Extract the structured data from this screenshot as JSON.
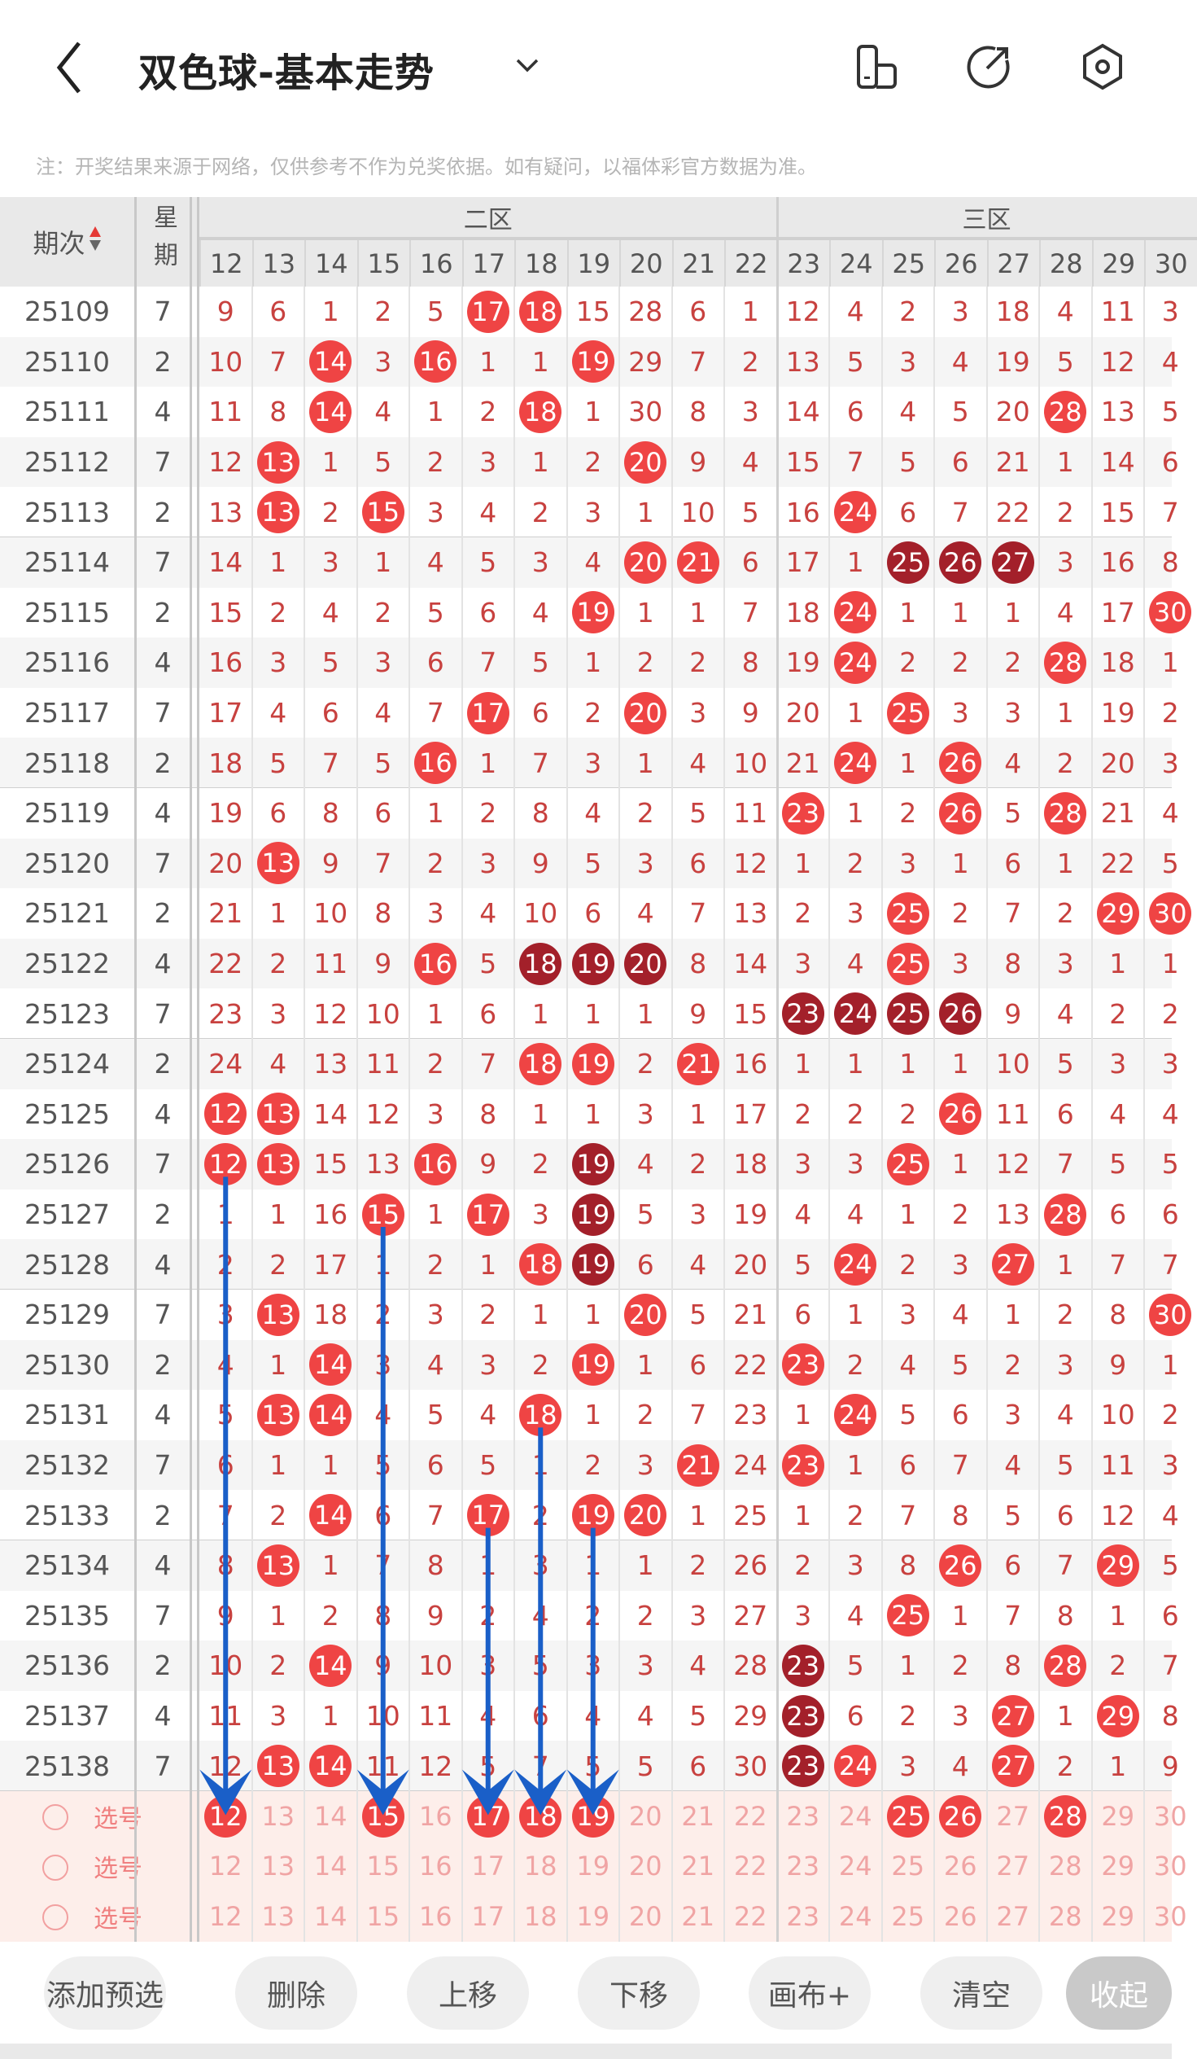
{
  "header": {
    "title": "双色球-基本走势",
    "back_icon": "chevron-left-icon",
    "dropdown_icon": "chevron-down-icon",
    "icons": [
      "phone-layout-icon",
      "share-icon",
      "settings-hexagon-icon"
    ]
  },
  "note": "注：开奖结果来源于网络，仅供参考不作为兑奖依据。如有疑问，以福体彩官方数据为准。",
  "table": {
    "period_header": "期次",
    "weekday_header": "星期",
    "sort_icon": "sort-up-down-icon",
    "zones": [
      {
        "label": "二区",
        "from": 12,
        "to": 22
      },
      {
        "label": "三区",
        "from": 23,
        "to": 30
      }
    ],
    "columns": [
      12,
      13,
      14,
      15,
      16,
      17,
      18,
      19,
      20,
      21,
      22,
      23,
      24,
      25,
      26,
      27,
      28,
      29,
      30
    ],
    "colors": {
      "hit": "#ef4444",
      "hit_consecutive": "#a3202a",
      "miss_text": "#c8413f",
      "guide_arrow": "#1a5fc8"
    },
    "rows": [
      {
        "period": "25109",
        "weekday": "7",
        "values": [
          9,
          6,
          1,
          2,
          5,
          17,
          18,
          15,
          28,
          6,
          1,
          12,
          4,
          2,
          3,
          18,
          4,
          11,
          3
        ],
        "hits": [
          17,
          18
        ],
        "dark": []
      },
      {
        "period": "25110",
        "weekday": "2",
        "values": [
          10,
          7,
          14,
          3,
          16,
          1,
          1,
          19,
          29,
          7,
          2,
          13,
          5,
          3,
          4,
          19,
          5,
          12,
          4
        ],
        "hits": [
          14,
          16,
          19
        ],
        "dark": []
      },
      {
        "period": "25111",
        "weekday": "4",
        "values": [
          11,
          8,
          14,
          4,
          1,
          2,
          18,
          1,
          30,
          8,
          3,
          14,
          6,
          4,
          5,
          20,
          28,
          13,
          5
        ],
        "hits": [
          14,
          18,
          28
        ],
        "dark": []
      },
      {
        "period": "25112",
        "weekday": "7",
        "values": [
          12,
          13,
          1,
          5,
          2,
          3,
          1,
          2,
          20,
          9,
          4,
          15,
          7,
          5,
          6,
          21,
          1,
          14,
          6
        ],
        "hits": [
          13,
          20
        ],
        "dark": []
      },
      {
        "period": "25113",
        "weekday": "2",
        "values": [
          13,
          13,
          2,
          15,
          3,
          4,
          2,
          3,
          1,
          10,
          5,
          16,
          24,
          6,
          7,
          22,
          2,
          15,
          7
        ],
        "hits": [
          13,
          15,
          24
        ],
        "dark": []
      },
      {
        "period": "25114",
        "weekday": "7",
        "values": [
          14,
          1,
          3,
          1,
          4,
          5,
          3,
          4,
          20,
          21,
          6,
          17,
          1,
          25,
          26,
          27,
          3,
          16,
          8
        ],
        "hits": [
          20,
          21
        ],
        "dark": [
          25,
          26,
          27
        ]
      },
      {
        "period": "25115",
        "weekday": "2",
        "values": [
          15,
          2,
          4,
          2,
          5,
          6,
          4,
          19,
          1,
          1,
          7,
          18,
          24,
          1,
          1,
          1,
          4,
          17,
          30
        ],
        "hits": [
          19,
          24,
          30
        ],
        "dark": []
      },
      {
        "period": "25116",
        "weekday": "4",
        "values": [
          16,
          3,
          5,
          3,
          6,
          7,
          5,
          1,
          2,
          2,
          8,
          19,
          24,
          2,
          2,
          2,
          28,
          18,
          1
        ],
        "hits": [
          24,
          28
        ],
        "dark": []
      },
      {
        "period": "25117",
        "weekday": "7",
        "values": [
          17,
          4,
          6,
          4,
          7,
          17,
          6,
          2,
          20,
          3,
          9,
          20,
          1,
          25,
          3,
          3,
          1,
          19,
          2
        ],
        "hits": [
          17,
          20,
          25
        ],
        "dark": []
      },
      {
        "period": "25118",
        "weekday": "2",
        "values": [
          18,
          5,
          7,
          5,
          16,
          1,
          7,
          3,
          1,
          4,
          10,
          21,
          24,
          1,
          26,
          4,
          2,
          20,
          3
        ],
        "hits": [
          16,
          24,
          26
        ],
        "dark": []
      },
      {
        "period": "25119",
        "weekday": "4",
        "values": [
          19,
          6,
          8,
          6,
          1,
          2,
          8,
          4,
          2,
          5,
          11,
          23,
          1,
          2,
          26,
          5,
          28,
          21,
          4
        ],
        "hits": [
          23,
          26,
          28
        ],
        "dark": []
      },
      {
        "period": "25120",
        "weekday": "7",
        "values": [
          20,
          13,
          9,
          7,
          2,
          3,
          9,
          5,
          3,
          6,
          12,
          1,
          2,
          3,
          1,
          6,
          1,
          22,
          5
        ],
        "hits": [
          13
        ],
        "dark": []
      },
      {
        "period": "25121",
        "weekday": "2",
        "values": [
          21,
          1,
          10,
          8,
          3,
          4,
          10,
          6,
          4,
          7,
          13,
          2,
          3,
          25,
          2,
          7,
          2,
          29,
          30
        ],
        "hits": [
          25,
          29,
          30
        ],
        "dark": []
      },
      {
        "period": "25122",
        "weekday": "4",
        "values": [
          22,
          2,
          11,
          9,
          16,
          5,
          18,
          19,
          20,
          8,
          14,
          3,
          4,
          25,
          3,
          8,
          3,
          1,
          1
        ],
        "hits": [
          16,
          25
        ],
        "dark": [
          18,
          19,
          20
        ]
      },
      {
        "period": "25123",
        "weekday": "7",
        "values": [
          23,
          3,
          12,
          10,
          1,
          6,
          1,
          1,
          1,
          9,
          15,
          23,
          24,
          25,
          26,
          9,
          4,
          2,
          2
        ],
        "hits": [],
        "dark": [
          23,
          24,
          25,
          26
        ]
      },
      {
        "period": "25124",
        "weekday": "2",
        "values": [
          24,
          4,
          13,
          11,
          2,
          7,
          18,
          19,
          2,
          21,
          16,
          1,
          1,
          1,
          1,
          10,
          5,
          3,
          3
        ],
        "hits": [
          18,
          19,
          21
        ],
        "dark": []
      },
      {
        "period": "25125",
        "weekday": "4",
        "values": [
          12,
          13,
          14,
          12,
          3,
          8,
          1,
          1,
          3,
          1,
          17,
          2,
          2,
          2,
          26,
          11,
          6,
          4,
          4
        ],
        "hits": [
          12,
          13,
          26
        ],
        "dark": []
      },
      {
        "period": "25126",
        "weekday": "7",
        "values": [
          12,
          13,
          15,
          13,
          16,
          9,
          2,
          19,
          4,
          2,
          18,
          3,
          3,
          25,
          1,
          12,
          7,
          5,
          5
        ],
        "hits": [
          12,
          13,
          16,
          25
        ],
        "dark": [
          19
        ]
      },
      {
        "period": "25127",
        "weekday": "2",
        "values": [
          1,
          1,
          16,
          15,
          1,
          17,
          3,
          19,
          5,
          3,
          19,
          4,
          4,
          1,
          2,
          13,
          28,
          6,
          6
        ],
        "hits": [
          15,
          17,
          28
        ],
        "dark": [
          19
        ]
      },
      {
        "period": "25128",
        "weekday": "4",
        "values": [
          2,
          2,
          17,
          1,
          2,
          1,
          18,
          19,
          6,
          4,
          20,
          5,
          24,
          2,
          3,
          27,
          1,
          7,
          7
        ],
        "hits": [
          18,
          24,
          27
        ],
        "dark": [
          19
        ]
      },
      {
        "period": "25129",
        "weekday": "7",
        "values": [
          3,
          13,
          18,
          2,
          3,
          2,
          1,
          1,
          20,
          5,
          21,
          6,
          1,
          3,
          4,
          1,
          2,
          8,
          30
        ],
        "hits": [
          13,
          20,
          30
        ],
        "dark": []
      },
      {
        "period": "25130",
        "weekday": "2",
        "values": [
          4,
          1,
          14,
          3,
          4,
          3,
          2,
          19,
          1,
          6,
          22,
          23,
          2,
          4,
          5,
          2,
          3,
          9,
          1
        ],
        "hits": [
          14,
          19,
          23
        ],
        "dark": []
      },
      {
        "period": "25131",
        "weekday": "4",
        "values": [
          5,
          13,
          14,
          4,
          5,
          4,
          18,
          1,
          2,
          7,
          23,
          1,
          24,
          5,
          6,
          3,
          4,
          10,
          2
        ],
        "hits": [
          13,
          14,
          18,
          24
        ],
        "dark": []
      },
      {
        "period": "25132",
        "weekday": "7",
        "values": [
          6,
          1,
          1,
          5,
          6,
          5,
          1,
          2,
          3,
          21,
          24,
          23,
          1,
          6,
          7,
          4,
          5,
          11,
          3
        ],
        "hits": [
          21,
          23
        ],
        "dark": []
      },
      {
        "period": "25133",
        "weekday": "2",
        "values": [
          7,
          2,
          14,
          6,
          7,
          17,
          2,
          19,
          20,
          1,
          25,
          1,
          2,
          7,
          8,
          5,
          6,
          12,
          4
        ],
        "hits": [
          14,
          17,
          19,
          20
        ],
        "dark": []
      },
      {
        "period": "25134",
        "weekday": "4",
        "values": [
          8,
          13,
          1,
          7,
          8,
          1,
          3,
          1,
          1,
          2,
          26,
          2,
          3,
          8,
          26,
          6,
          7,
          29,
          5
        ],
        "hits": [
          13,
          26,
          29
        ],
        "dark": []
      },
      {
        "period": "25135",
        "weekday": "7",
        "values": [
          9,
          1,
          2,
          8,
          9,
          2,
          4,
          2,
          2,
          3,
          27,
          3,
          4,
          25,
          1,
          7,
          8,
          1,
          6
        ],
        "hits": [
          25
        ],
        "dark": []
      },
      {
        "period": "25136",
        "weekday": "2",
        "values": [
          10,
          2,
          14,
          9,
          10,
          3,
          5,
          3,
          3,
          4,
          28,
          23,
          5,
          1,
          2,
          8,
          28,
          2,
          7
        ],
        "hits": [
          14,
          28
        ],
        "dark": [
          23
        ]
      },
      {
        "period": "25137",
        "weekday": "4",
        "values": [
          11,
          3,
          1,
          10,
          11,
          4,
          6,
          4,
          4,
          5,
          29,
          23,
          6,
          2,
          3,
          27,
          1,
          29,
          8
        ],
        "hits": [
          27,
          29
        ],
        "dark": [
          23
        ]
      },
      {
        "period": "25138",
        "weekday": "7",
        "values": [
          12,
          13,
          14,
          11,
          12,
          5,
          7,
          5,
          5,
          6,
          30,
          23,
          24,
          3,
          4,
          27,
          2,
          1,
          9
        ],
        "hits": [
          13,
          14,
          24,
          27
        ],
        "dark": [
          23
        ]
      }
    ],
    "select_rows": [
      {
        "label": "选号",
        "picked": [
          12,
          15,
          17,
          18,
          19,
          25,
          26,
          28
        ]
      },
      {
        "label": "选号",
        "picked": []
      },
      {
        "label": "选号",
        "picked": []
      }
    ],
    "guide_arrows": [
      {
        "column": 12,
        "from_period": "25126"
      },
      {
        "column": 15,
        "from_period": "25127"
      },
      {
        "column": 17,
        "from_period": "25133"
      },
      {
        "column": 18,
        "from_period": "25131"
      },
      {
        "column": 19,
        "from_period": "25133"
      }
    ]
  },
  "buttons": [
    {
      "label": "添加预选"
    },
    {
      "label": "删除"
    },
    {
      "label": "上移"
    },
    {
      "label": "下移"
    },
    {
      "label": "画布+"
    },
    {
      "label": "清空"
    },
    {
      "label": "收起",
      "filled": true
    }
  ]
}
